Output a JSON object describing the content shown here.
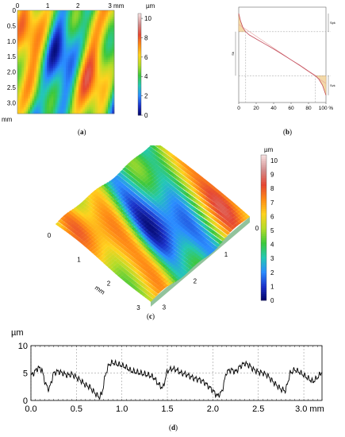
{
  "panels": [
    {
      "id": "a",
      "label_open": "(",
      "label_letter": "a",
      "label_close": ")"
    },
    {
      "id": "b",
      "label_open": "(",
      "label_letter": "b",
      "label_close": ")"
    },
    {
      "id": "c",
      "label_open": "(",
      "label_letter": "c",
      "label_close": ")"
    },
    {
      "id": "d",
      "label_open": "(",
      "label_letter": "d",
      "label_close": ")"
    }
  ],
  "colorscale": {
    "stops": [
      "#000060",
      "#1a30c8",
      "#2a8cff",
      "#23c8b4",
      "#3cc83c",
      "#b4dc28",
      "#ffd21e",
      "#ff8c14",
      "#e64632",
      "#d28c8c",
      "#f5dcdc"
    ]
  },
  "chart_data": [
    {
      "id": "a",
      "type": "heatmap",
      "x_ticks": [
        "0",
        "1",
        "2",
        "3 mm"
      ],
      "y_ticks": [
        "0",
        "0.5",
        "1.0",
        "1.5",
        "2.0",
        "2.5",
        "3.0"
      ],
      "y_unit": "mm",
      "colorbar_unit": "µm",
      "colorbar_ticks": [
        "10",
        "8",
        "6",
        "4",
        "2",
        "0"
      ],
      "xlim": [
        0,
        3.2
      ],
      "ylim": [
        0,
        3.2
      ],
      "zlim": [
        0,
        10.5
      ]
    },
    {
      "id": "b",
      "type": "line",
      "x_ticks": [
        "0",
        "20",
        "40",
        "60",
        "80",
        "100 %"
      ],
      "xlim": [
        0,
        100
      ],
      "left_label": "Sk",
      "right_labels": [
        "Spk",
        "Svk"
      ],
      "x": [
        0,
        2,
        5,
        8,
        12,
        20,
        30,
        40,
        50,
        60,
        70,
        80,
        88,
        92,
        96,
        100
      ],
      "y": [
        9.8,
        9.0,
        8.2,
        7.8,
        7.45,
        7.0,
        6.45,
        5.9,
        5.3,
        4.7,
        4.1,
        3.45,
        2.95,
        2.55,
        1.9,
        0.8
      ]
    },
    {
      "id": "c",
      "type": "heatmap",
      "axis_unit": "mm",
      "left_axis_ticks": [
        "0",
        "1",
        "2",
        "3"
      ],
      "right_axis_ticks": [
        "0",
        "1",
        "2",
        "3"
      ],
      "colorbar_unit": "µm",
      "colorbar_ticks": [
        "10",
        "9",
        "8",
        "7",
        "6",
        "5",
        "4",
        "3",
        "2",
        "1",
        "0"
      ]
    },
    {
      "id": "d",
      "type": "line",
      "ylabel": "µm",
      "x_ticks": [
        "0.0",
        "0.5",
        "1.0",
        "1.5",
        "2.0",
        "2.5",
        "3.0 mm"
      ],
      "y_ticks": [
        "10",
        "5",
        "0"
      ],
      "xlim": [
        0,
        3.2
      ],
      "ylim": [
        0,
        10
      ],
      "grid": true,
      "x": [
        0.0,
        0.04,
        0.08,
        0.12,
        0.16,
        0.2,
        0.25,
        0.3,
        0.35,
        0.4,
        0.45,
        0.5,
        0.55,
        0.6,
        0.65,
        0.7,
        0.75,
        0.78,
        0.82,
        0.86,
        0.9,
        0.95,
        1.0,
        1.05,
        1.1,
        1.15,
        1.2,
        1.25,
        1.3,
        1.35,
        1.4,
        1.45,
        1.5,
        1.55,
        1.6,
        1.65,
        1.7,
        1.75,
        1.8,
        1.85,
        1.9,
        1.95,
        2.0,
        2.05,
        2.1,
        2.15,
        2.2,
        2.25,
        2.3,
        2.35,
        2.4,
        2.45,
        2.5,
        2.55,
        2.6,
        2.65,
        2.7,
        2.75,
        2.8,
        2.85,
        2.9,
        2.95,
        3.0,
        3.05,
        3.1,
        3.15,
        3.2
      ],
      "y": [
        4.5,
        5.2,
        6.0,
        5.6,
        3.0,
        2.0,
        5.0,
        5.3,
        5.0,
        4.6,
        4.8,
        4.2,
        3.6,
        2.8,
        2.4,
        1.4,
        0.6,
        1.2,
        4.8,
        6.6,
        6.9,
        6.6,
        6.4,
        6.0,
        5.4,
        5.2,
        5.0,
        4.8,
        4.6,
        4.2,
        3.0,
        2.2,
        5.4,
        5.8,
        5.6,
        5.0,
        4.8,
        4.4,
        4.0,
        3.8,
        3.4,
        2.6,
        1.8,
        0.8,
        1.6,
        5.2,
        5.6,
        5.2,
        6.2,
        6.8,
        6.4,
        5.6,
        5.2,
        5.0,
        4.6,
        3.6,
        2.8,
        2.0,
        1.8,
        5.0,
        5.6,
        5.2,
        4.6,
        4.0,
        3.4,
        4.2,
        5.2
      ]
    }
  ]
}
